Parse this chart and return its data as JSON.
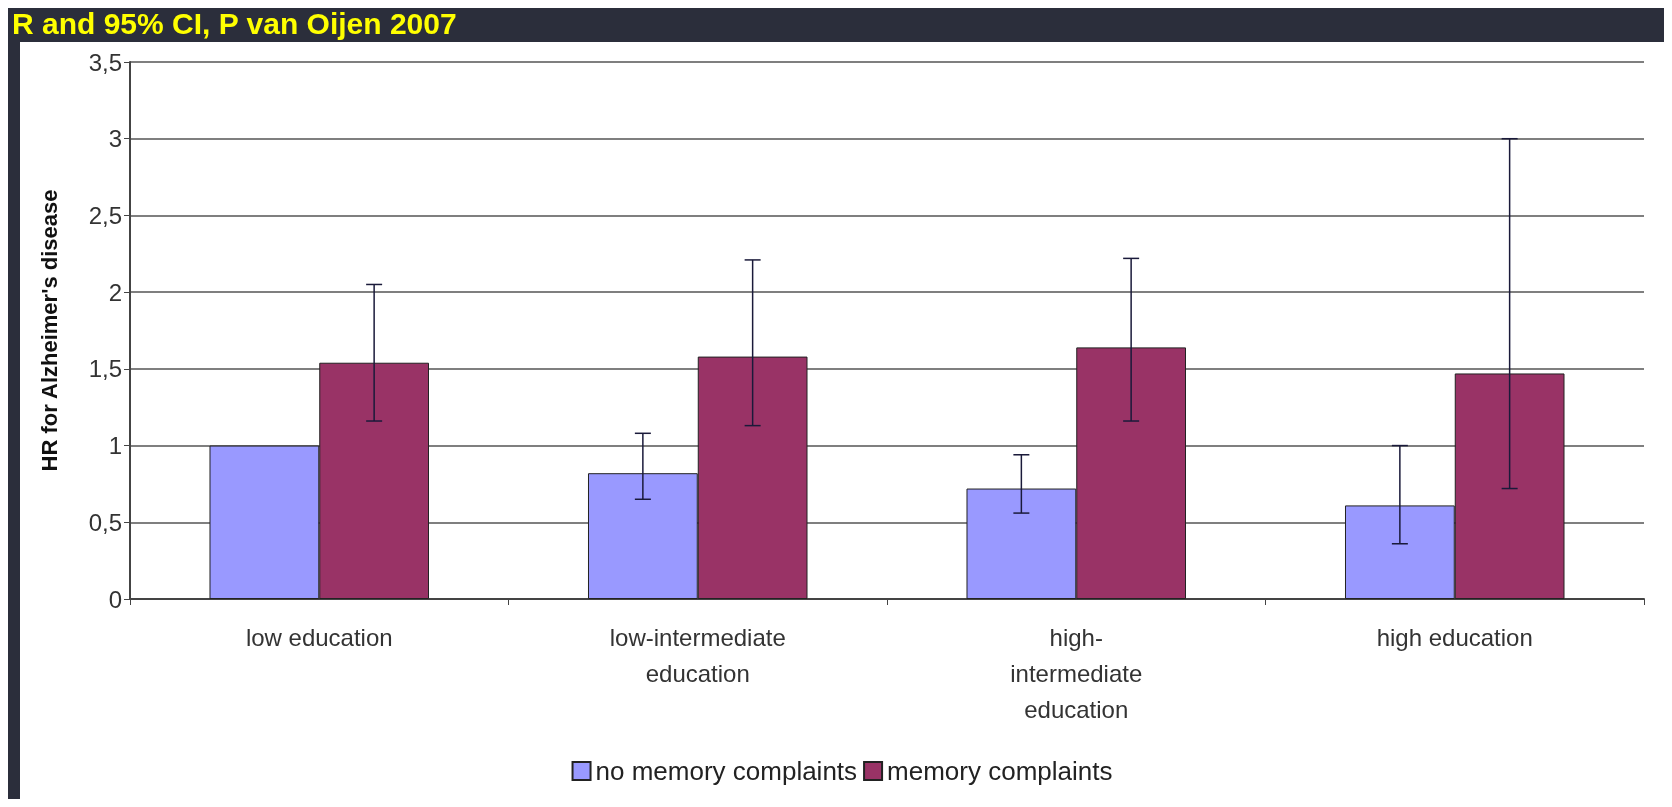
{
  "chart_data": {
    "type": "bar",
    "title": "R and 95% CI, P van Oijen 2007",
    "ylabel": "HR for Alzheimer's disease",
    "categories": [
      "low education",
      "low-intermediate\neducation",
      "high-\nintermediate\neducation",
      "high education"
    ],
    "series": [
      {
        "name": "no memory complaints",
        "color": "#9999ff",
        "values": [
          1.0,
          0.82,
          0.72,
          0.61
        ],
        "errors": [
          null,
          [
            0.65,
            1.08
          ],
          [
            0.56,
            0.94
          ],
          [
            0.36,
            1.0
          ]
        ]
      },
      {
        "name": "memory complaints",
        "color": "#993366",
        "values": [
          1.54,
          1.58,
          1.64,
          1.47
        ],
        "errors": [
          [
            1.16,
            2.05
          ],
          [
            1.13,
            2.21
          ],
          [
            1.16,
            2.22
          ],
          [
            0.72,
            3.0
          ]
        ]
      }
    ],
    "ylim": [
      0,
      3.5
    ],
    "yticks": [
      0,
      {
        "value": 0.5,
        "label": "0,5"
      },
      1,
      {
        "value": 1.5,
        "label": "1,5"
      },
      2,
      {
        "value": 2.5,
        "label": "2,5"
      },
      3,
      {
        "value": 3.5,
        "label": "3,5"
      }
    ],
    "grid": "y",
    "legend": "bottom"
  }
}
